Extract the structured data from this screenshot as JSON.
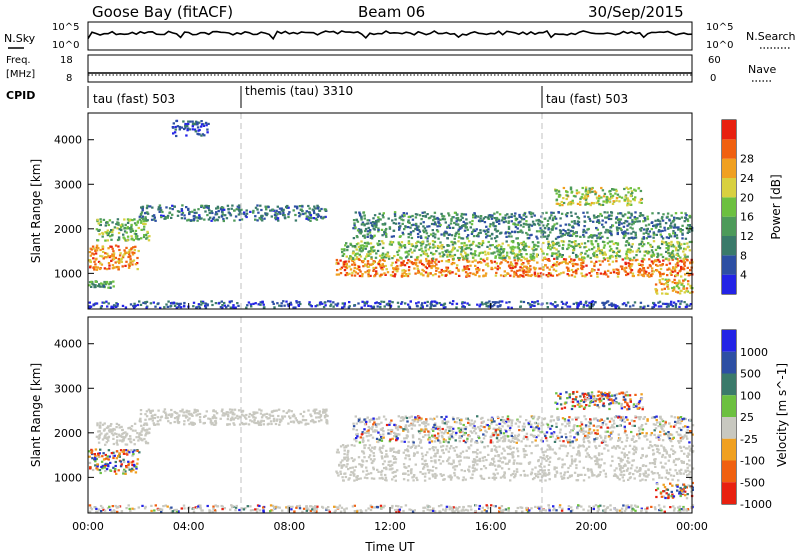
{
  "header": {
    "station": "Goose Bay (fitACF)",
    "beam": "Beam 06",
    "date": "30/Sep/2015"
  },
  "noise_panel": {
    "left_label": "N.Sky",
    "left_ticks": [
      "10^5",
      "10^0"
    ],
    "right_label": "N.Search",
    "right_ticks": [
      "10^5",
      "10^0"
    ]
  },
  "freq_panel": {
    "left_label": "Freq.",
    "left_unit": "[MHz]",
    "left_ticks": [
      "18",
      "8"
    ],
    "right_label": "Nave",
    "right_ticks": [
      "60",
      "0"
    ]
  },
  "cpid": {
    "label": "CPID",
    "segments": [
      {
        "name": "tau (fast) 503",
        "start_hour": 0
      },
      {
        "name": "themis (tau) 3310",
        "start_hour": 6
      },
      {
        "name": "tau (fast) 503",
        "start_hour": 18
      }
    ]
  },
  "colors": {
    "power_scale": [
      "#2323e6",
      "#2d4fa3",
      "#3a7a6a",
      "#4d9a5a",
      "#6cc040",
      "#d8d040",
      "#f0a020",
      "#f06010",
      "#e82010"
    ],
    "velocity_scale": [
      "#2323e6",
      "#2d4fa3",
      "#3a7a6a",
      "#6cc040",
      "#c8c8c0",
      "#f0a020",
      "#f06010",
      "#e82010"
    ],
    "ground_scatter": "#c8c8c0"
  },
  "chart_data": [
    {
      "type": "heatmap",
      "panel": "power",
      "ylabel": "Slant Range [km]",
      "yticks": [
        1000,
        2000,
        3000,
        4000
      ],
      "ylim": [
        200,
        4600
      ],
      "xlim_hours": [
        0,
        24
      ],
      "colorbar_label": "Power [dB]",
      "colorbar_ticks": [
        4,
        8,
        12,
        16,
        20,
        24,
        28
      ],
      "features": [
        {
          "t0": 0.0,
          "t1": 2.0,
          "r0": 1100,
          "r1": 1650,
          "level": 0.78
        },
        {
          "t0": 0.3,
          "t1": 2.4,
          "r0": 1750,
          "r1": 2250,
          "level": 0.45
        },
        {
          "t0": 2.0,
          "t1": 9.5,
          "r0": 2200,
          "r1": 2550,
          "level": 0.22
        },
        {
          "t0": 0.0,
          "t1": 1.0,
          "r0": 700,
          "r1": 850,
          "level": 0.35
        },
        {
          "t0": 9.8,
          "t1": 24.0,
          "r0": 950,
          "r1": 1350,
          "level": 0.82
        },
        {
          "t0": 10.0,
          "t1": 24.0,
          "r0": 1350,
          "r1": 1750,
          "level": 0.48
        },
        {
          "t0": 10.5,
          "t1": 24.0,
          "r0": 1800,
          "r1": 2400,
          "level": 0.28
        },
        {
          "t0": 18.5,
          "t1": 22.0,
          "r0": 2550,
          "r1": 2950,
          "level": 0.55
        },
        {
          "t0": 22.5,
          "t1": 24.0,
          "r0": 550,
          "r1": 900,
          "level": 0.68
        },
        {
          "t0": 0.0,
          "t1": 24.0,
          "r0": 250,
          "r1": 400,
          "level": 0.12
        },
        {
          "t0": 3.3,
          "t1": 4.8,
          "r0": 4100,
          "r1": 4450,
          "level": 0.12
        }
      ]
    },
    {
      "type": "heatmap",
      "panel": "velocity",
      "ylabel": "Slant Range [km]",
      "yticks": [
        1000,
        2000,
        3000,
        4000
      ],
      "ylim": [
        200,
        4600
      ],
      "xlim_hours": [
        0,
        24
      ],
      "xticks": [
        "00:00",
        "04:00",
        "08:00",
        "12:00",
        "16:00",
        "20:00",
        "00:00"
      ],
      "xlabel": "Time UT",
      "colorbar_label": "Velocity [m s^-1]",
      "colorbar_ticks": [
        1000,
        500,
        100,
        25,
        -25,
        -100,
        -500,
        -1000
      ],
      "features": [
        {
          "t0": 0.0,
          "t1": 2.0,
          "r0": 1100,
          "r1": 1650,
          "kind": "ionospheric"
        },
        {
          "t0": 0.3,
          "t1": 2.4,
          "r0": 1750,
          "r1": 2250,
          "kind": "ground"
        },
        {
          "t0": 2.0,
          "t1": 9.5,
          "r0": 2200,
          "r1": 2550,
          "kind": "ground"
        },
        {
          "t0": 9.8,
          "t1": 24.0,
          "r0": 950,
          "r1": 1750,
          "kind": "ground"
        },
        {
          "t0": 10.5,
          "t1": 24.0,
          "r0": 1800,
          "r1": 2400,
          "kind": "mixed"
        },
        {
          "t0": 18.5,
          "t1": 22.0,
          "r0": 2550,
          "r1": 2950,
          "kind": "ionospheric"
        },
        {
          "t0": 22.5,
          "t1": 24.0,
          "r0": 550,
          "r1": 900,
          "kind": "ionospheric"
        },
        {
          "t0": 0.0,
          "t1": 24.0,
          "r0": 250,
          "r1": 400,
          "kind": "mixed"
        }
      ]
    }
  ]
}
